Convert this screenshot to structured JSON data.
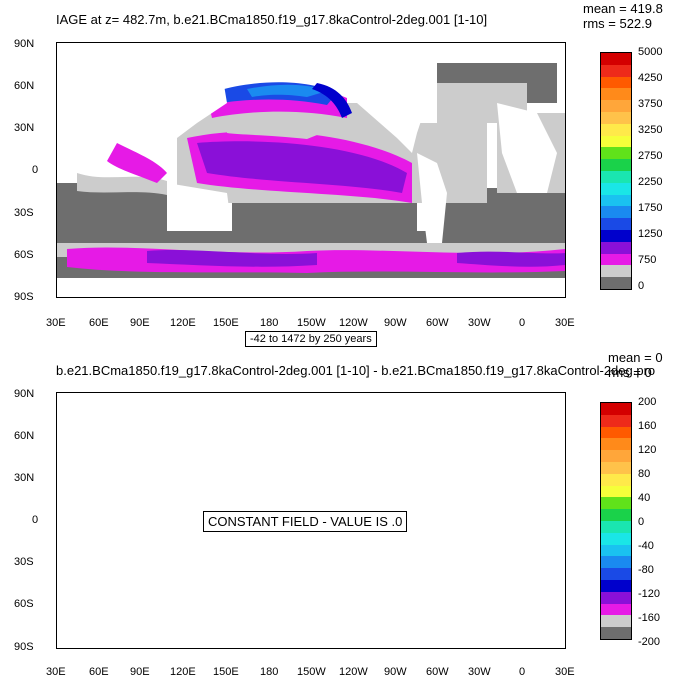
{
  "top_panel": {
    "title": "IAGE at z= 482.7m, b.e21.BCma1850.f19_g17.8kaControl-2deg.001 [1-10]",
    "mean": "mean = 419.8",
    "rms": "rms = 522.9",
    "range_label": "-42 to 1472 by 250 years",
    "lat_ticks": [
      "90N",
      "60N",
      "30N",
      "0",
      "30S",
      "60S",
      "90S"
    ],
    "lon_ticks": [
      "30E",
      "60E",
      "90E",
      "120E",
      "150E",
      "180",
      "150W",
      "120W",
      "90W",
      "60W",
      "30W",
      "0",
      "30E"
    ],
    "colorbar": {
      "colors": [
        "#d40000",
        "#ee2a1a",
        "#ff5a00",
        "#ff8a1a",
        "#ffa63a",
        "#ffc24a",
        "#ffe94a",
        "#f5ff3a",
        "#60e21a",
        "#1ad24a",
        "#1ae6b0",
        "#1ae6e6",
        "#1ac2f0",
        "#1a8af0",
        "#1a4ae6",
        "#0000cc",
        "#8a10d8",
        "#e61ae6",
        "#cccccc",
        "#6e6e6e"
      ],
      "labels": [
        "5000",
        "4250",
        "3750",
        "3250",
        "2750",
        "2250",
        "1750",
        "1250",
        "750",
        "0"
      ]
    }
  },
  "bottom_panel": {
    "title": "b.e21.BCma1850.f19_g17.8kaControl-2deg.001 [1-10] - b.e21.BCma1850.f19_g17.8kaControl-2deg.pro",
    "mean": "mean = 0",
    "rms": "rms = 0",
    "constant_label": "CONSTANT FIELD - VALUE IS .0",
    "lat_ticks": [
      "90N",
      "60N",
      "30N",
      "0",
      "30S",
      "60S",
      "90S"
    ],
    "lon_ticks": [
      "30E",
      "60E",
      "90E",
      "120E",
      "150E",
      "180",
      "150W",
      "120W",
      "90W",
      "60W",
      "30W",
      "0",
      "30E"
    ],
    "colorbar": {
      "colors": [
        "#d40000",
        "#ee2a1a",
        "#ff5a00",
        "#ff8a1a",
        "#ffa63a",
        "#ffc24a",
        "#ffe94a",
        "#f5ff3a",
        "#60e21a",
        "#1ad24a",
        "#1ae6b0",
        "#1ae6e6",
        "#1ac2f0",
        "#1a8af0",
        "#1a4ae6",
        "#0000cc",
        "#8a10d8",
        "#e61ae6",
        "#cccccc",
        "#6e6e6e"
      ],
      "labels": [
        "200",
        "160",
        "120",
        "80",
        "40",
        "0",
        "-40",
        "-80",
        "-120",
        "-160",
        "-200"
      ]
    }
  }
}
